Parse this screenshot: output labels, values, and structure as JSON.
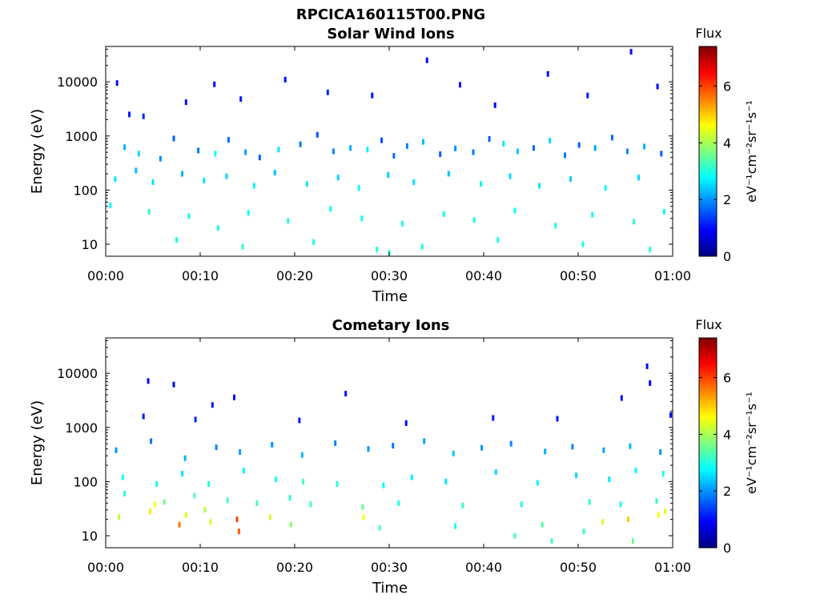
{
  "figure": {
    "filename_title": "RPCICA160115T00.PNG"
  },
  "colorbar": {
    "label": "Flux",
    "unit_label": "eV⁻¹cm⁻²sr⁻¹s⁻¹",
    "min": 0,
    "max": 7.4,
    "ticks": [
      0,
      2,
      4,
      6
    ],
    "colormap": "jet",
    "colors": [
      "#00007f",
      "#0000ff",
      "#007fff",
      "#00ffff",
      "#7fff7f",
      "#ffff00",
      "#ff7f00",
      "#ff0000",
      "#7f0000"
    ]
  },
  "chart_data": [
    {
      "type": "heatmap",
      "title": "Solar Wind Ions",
      "xlabel": "Time",
      "ylabel": "Energy (eV)",
      "x_unit": "minutes",
      "xlim": [
        0,
        60
      ],
      "x_ticks": [
        0,
        10,
        20,
        30,
        40,
        50,
        60
      ],
      "x_tick_labels": [
        "00:00",
        "00:10",
        "00:20",
        "00:30",
        "00:40",
        "00:50",
        "01:00"
      ],
      "y_scale": "log",
      "ylim": [
        6,
        45000
      ],
      "y_ticks": [
        10,
        100,
        1000,
        10000
      ],
      "y_tick_labels": [
        "10",
        "100",
        "1000",
        "10000"
      ],
      "grid": false,
      "points": [
        [
          1.2,
          9500,
          1.0
        ],
        [
          2.5,
          2500,
          1.1
        ],
        [
          4.0,
          2300,
          1.2
        ],
        [
          8.5,
          4200,
          1.0
        ],
        [
          11.5,
          9000,
          1.0
        ],
        [
          14.3,
          4800,
          1.1
        ],
        [
          19.0,
          11000,
          1.0
        ],
        [
          23.5,
          6400,
          1.2
        ],
        [
          28.2,
          5600,
          1.0
        ],
        [
          34.0,
          25000,
          1.0
        ],
        [
          37.5,
          8800,
          1.1
        ],
        [
          41.2,
          3700,
          1.0
        ],
        [
          46.8,
          14000,
          1.0
        ],
        [
          51.0,
          5600,
          1.1
        ],
        [
          55.6,
          36000,
          1.0
        ],
        [
          58.4,
          8200,
          1.0
        ],
        [
          2.0,
          620,
          2.2
        ],
        [
          3.5,
          470,
          2.5
        ],
        [
          5.8,
          380,
          2.0
        ],
        [
          7.2,
          900,
          1.6
        ],
        [
          9.8,
          540,
          1.8
        ],
        [
          11.6,
          470,
          2.8
        ],
        [
          13.0,
          850,
          1.7
        ],
        [
          14.8,
          500,
          2.1
        ],
        [
          16.3,
          400,
          1.6
        ],
        [
          18.3,
          560,
          2.6
        ],
        [
          20.6,
          700,
          1.8
        ],
        [
          22.4,
          1050,
          1.5
        ],
        [
          24.1,
          520,
          1.9
        ],
        [
          25.9,
          600,
          2.2
        ],
        [
          27.7,
          560,
          2.7
        ],
        [
          29.2,
          830,
          1.5
        ],
        [
          30.5,
          430,
          1.7
        ],
        [
          31.9,
          650,
          1.9
        ],
        [
          33.6,
          780,
          2.3
        ],
        [
          35.4,
          460,
          1.6
        ],
        [
          37.0,
          590,
          2.0
        ],
        [
          38.9,
          500,
          1.8
        ],
        [
          40.6,
          880,
          1.6
        ],
        [
          42.1,
          720,
          2.6
        ],
        [
          43.6,
          520,
          2.4
        ],
        [
          45.3,
          600,
          1.7
        ],
        [
          47.0,
          820,
          2.5
        ],
        [
          48.6,
          440,
          1.8
        ],
        [
          50.1,
          680,
          1.6
        ],
        [
          51.8,
          600,
          2.1
        ],
        [
          53.6,
          930,
          1.7
        ],
        [
          55.2,
          520,
          1.9
        ],
        [
          57.0,
          640,
          2.2
        ],
        [
          58.8,
          470,
          1.6
        ],
        [
          1.0,
          160,
          2.6
        ],
        [
          3.2,
          230,
          2.3
        ],
        [
          5.0,
          140,
          2.6
        ],
        [
          8.1,
          200,
          2.2
        ],
        [
          10.4,
          150,
          2.6
        ],
        [
          12.8,
          180,
          2.5
        ],
        [
          15.7,
          120,
          2.7
        ],
        [
          17.9,
          210,
          2.3
        ],
        [
          21.3,
          130,
          2.6
        ],
        [
          24.6,
          170,
          2.5
        ],
        [
          26.8,
          110,
          2.8
        ],
        [
          29.9,
          190,
          2.4
        ],
        [
          32.6,
          140,
          2.6
        ],
        [
          36.3,
          200,
          2.3
        ],
        [
          39.7,
          130,
          2.7
        ],
        [
          42.8,
          180,
          2.5
        ],
        [
          45.9,
          120,
          2.6
        ],
        [
          49.2,
          160,
          2.4
        ],
        [
          52.9,
          110,
          2.8
        ],
        [
          56.4,
          170,
          2.5
        ],
        [
          0.5,
          52,
          2.9
        ],
        [
          4.6,
          40,
          3.1
        ],
        [
          8.8,
          33,
          2.9
        ],
        [
          11.9,
          20,
          3.0
        ],
        [
          15.1,
          38,
          2.8
        ],
        [
          19.3,
          27,
          3.0
        ],
        [
          23.8,
          45,
          2.8
        ],
        [
          27.1,
          30,
          2.9
        ],
        [
          31.4,
          24,
          3.0
        ],
        [
          35.8,
          36,
          2.9
        ],
        [
          39.0,
          28,
          3.0
        ],
        [
          43.3,
          42,
          2.8
        ],
        [
          47.6,
          22,
          3.0
        ],
        [
          51.5,
          35,
          2.9
        ],
        [
          55.9,
          26,
          3.1
        ],
        [
          59.1,
          40,
          2.8
        ],
        [
          7.5,
          12,
          3.0
        ],
        [
          14.5,
          9,
          3.1
        ],
        [
          22.0,
          11,
          3.0
        ],
        [
          28.7,
          8,
          3.1
        ],
        [
          30.0,
          7,
          3.0
        ],
        [
          33.5,
          9,
          3.0
        ],
        [
          41.5,
          12,
          3.0
        ],
        [
          50.5,
          10,
          3.0
        ],
        [
          57.6,
          8,
          3.1
        ]
      ]
    },
    {
      "type": "heatmap",
      "title": "Cometary Ions",
      "xlabel": "Time",
      "ylabel": "Energy (eV)",
      "x_unit": "minutes",
      "xlim": [
        0,
        60
      ],
      "x_ticks": [
        0,
        10,
        20,
        30,
        40,
        50,
        60
      ],
      "x_tick_labels": [
        "00:00",
        "00:10",
        "00:20",
        "00:30",
        "00:40",
        "00:50",
        "01:00"
      ],
      "y_scale": "log",
      "ylim": [
        6,
        45000
      ],
      "y_ticks": [
        10,
        100,
        1000,
        10000
      ],
      "y_tick_labels": [
        "10",
        "100",
        "1000",
        "10000"
      ],
      "grid": false,
      "points": [
        [
          4.5,
          7200,
          1.0
        ],
        [
          7.2,
          6200,
          1.0
        ],
        [
          11.3,
          2600,
          1.1
        ],
        [
          13.6,
          3600,
          1.0
        ],
        [
          25.4,
          4200,
          1.0
        ],
        [
          54.6,
          3500,
          1.0
        ],
        [
          57.3,
          13500,
          1.0
        ],
        [
          57.6,
          6600,
          1.0
        ],
        [
          59.8,
          1700,
          1.0
        ],
        [
          4.0,
          1600,
          1.1
        ],
        [
          9.5,
          1400,
          1.2
        ],
        [
          20.5,
          1350,
          1.1
        ],
        [
          31.8,
          1200,
          1.0
        ],
        [
          41.0,
          1500,
          1.1
        ],
        [
          47.8,
          1450,
          1.1
        ],
        [
          1.1,
          380,
          2.0
        ],
        [
          4.8,
          560,
          1.8
        ],
        [
          8.4,
          270,
          2.2
        ],
        [
          11.7,
          430,
          1.9
        ],
        [
          14.2,
          350,
          2.1
        ],
        [
          17.6,
          480,
          2.0
        ],
        [
          20.8,
          310,
          2.3
        ],
        [
          24.3,
          510,
          1.9
        ],
        [
          27.8,
          400,
          2.0
        ],
        [
          30.4,
          460,
          1.8
        ],
        [
          33.7,
          560,
          2.1
        ],
        [
          36.8,
          330,
          2.4
        ],
        [
          39.8,
          420,
          2.0
        ],
        [
          42.9,
          500,
          1.9
        ],
        [
          46.5,
          360,
          2.2
        ],
        [
          49.4,
          440,
          1.9
        ],
        [
          52.7,
          380,
          2.1
        ],
        [
          55.5,
          450,
          2.3
        ],
        [
          58.7,
          350,
          2.0
        ],
        [
          1.8,
          120,
          2.8
        ],
        [
          5.4,
          90,
          2.9
        ],
        [
          8.1,
          140,
          2.6
        ],
        [
          10.9,
          90,
          3.0
        ],
        [
          14.6,
          160,
          2.7
        ],
        [
          18.0,
          110,
          2.9
        ],
        [
          20.9,
          100,
          3.2
        ],
        [
          24.5,
          90,
          3.0
        ],
        [
          29.4,
          85,
          2.8
        ],
        [
          32.4,
          120,
          2.7
        ],
        [
          36.0,
          100,
          2.6
        ],
        [
          41.3,
          150,
          2.5
        ],
        [
          45.7,
          95,
          2.7
        ],
        [
          49.8,
          130,
          2.5
        ],
        [
          53.3,
          110,
          2.6
        ],
        [
          56.1,
          160,
          2.8
        ],
        [
          59.0,
          140,
          3.0
        ],
        [
          2.0,
          60,
          3.1
        ],
        [
          6.2,
          42,
          3.6
        ],
        [
          9.4,
          55,
          3.4
        ],
        [
          12.9,
          45,
          3.3
        ],
        [
          16.0,
          40,
          3.2
        ],
        [
          19.5,
          50,
          3.1
        ],
        [
          21.7,
          38,
          3.2
        ],
        [
          27.2,
          34,
          3.5
        ],
        [
          31.0,
          40,
          3.0
        ],
        [
          37.8,
          36,
          3.1
        ],
        [
          44.0,
          38,
          3.0
        ],
        [
          51.2,
          42,
          3.1
        ],
        [
          54.5,
          38,
          3.0
        ],
        [
          58.3,
          44,
          3.2
        ],
        [
          1.4,
          22,
          4.2
        ],
        [
          4.7,
          28,
          4.8
        ],
        [
          5.2,
          38,
          4.6
        ],
        [
          7.8,
          16,
          5.6
        ],
        [
          8.5,
          24,
          4.4
        ],
        [
          10.5,
          30,
          4.1
        ],
        [
          11.1,
          18,
          4.4
        ],
        [
          13.9,
          20,
          6.0
        ],
        [
          14.1,
          12,
          5.8
        ],
        [
          17.4,
          22,
          4.3
        ],
        [
          19.6,
          16,
          3.8
        ],
        [
          27.3,
          22,
          4.6
        ],
        [
          29.0,
          14,
          3.4
        ],
        [
          37.0,
          15,
          3.0
        ],
        [
          46.2,
          16,
          3.4
        ],
        [
          52.6,
          18,
          4.3
        ],
        [
          55.3,
          20,
          5.0
        ],
        [
          58.5,
          24,
          4.6
        ],
        [
          59.2,
          28,
          4.4
        ],
        [
          43.3,
          10,
          3.2
        ],
        [
          47.2,
          8,
          3.3
        ],
        [
          50.6,
          12,
          3.2
        ],
        [
          55.8,
          8,
          3.6
        ]
      ]
    }
  ]
}
